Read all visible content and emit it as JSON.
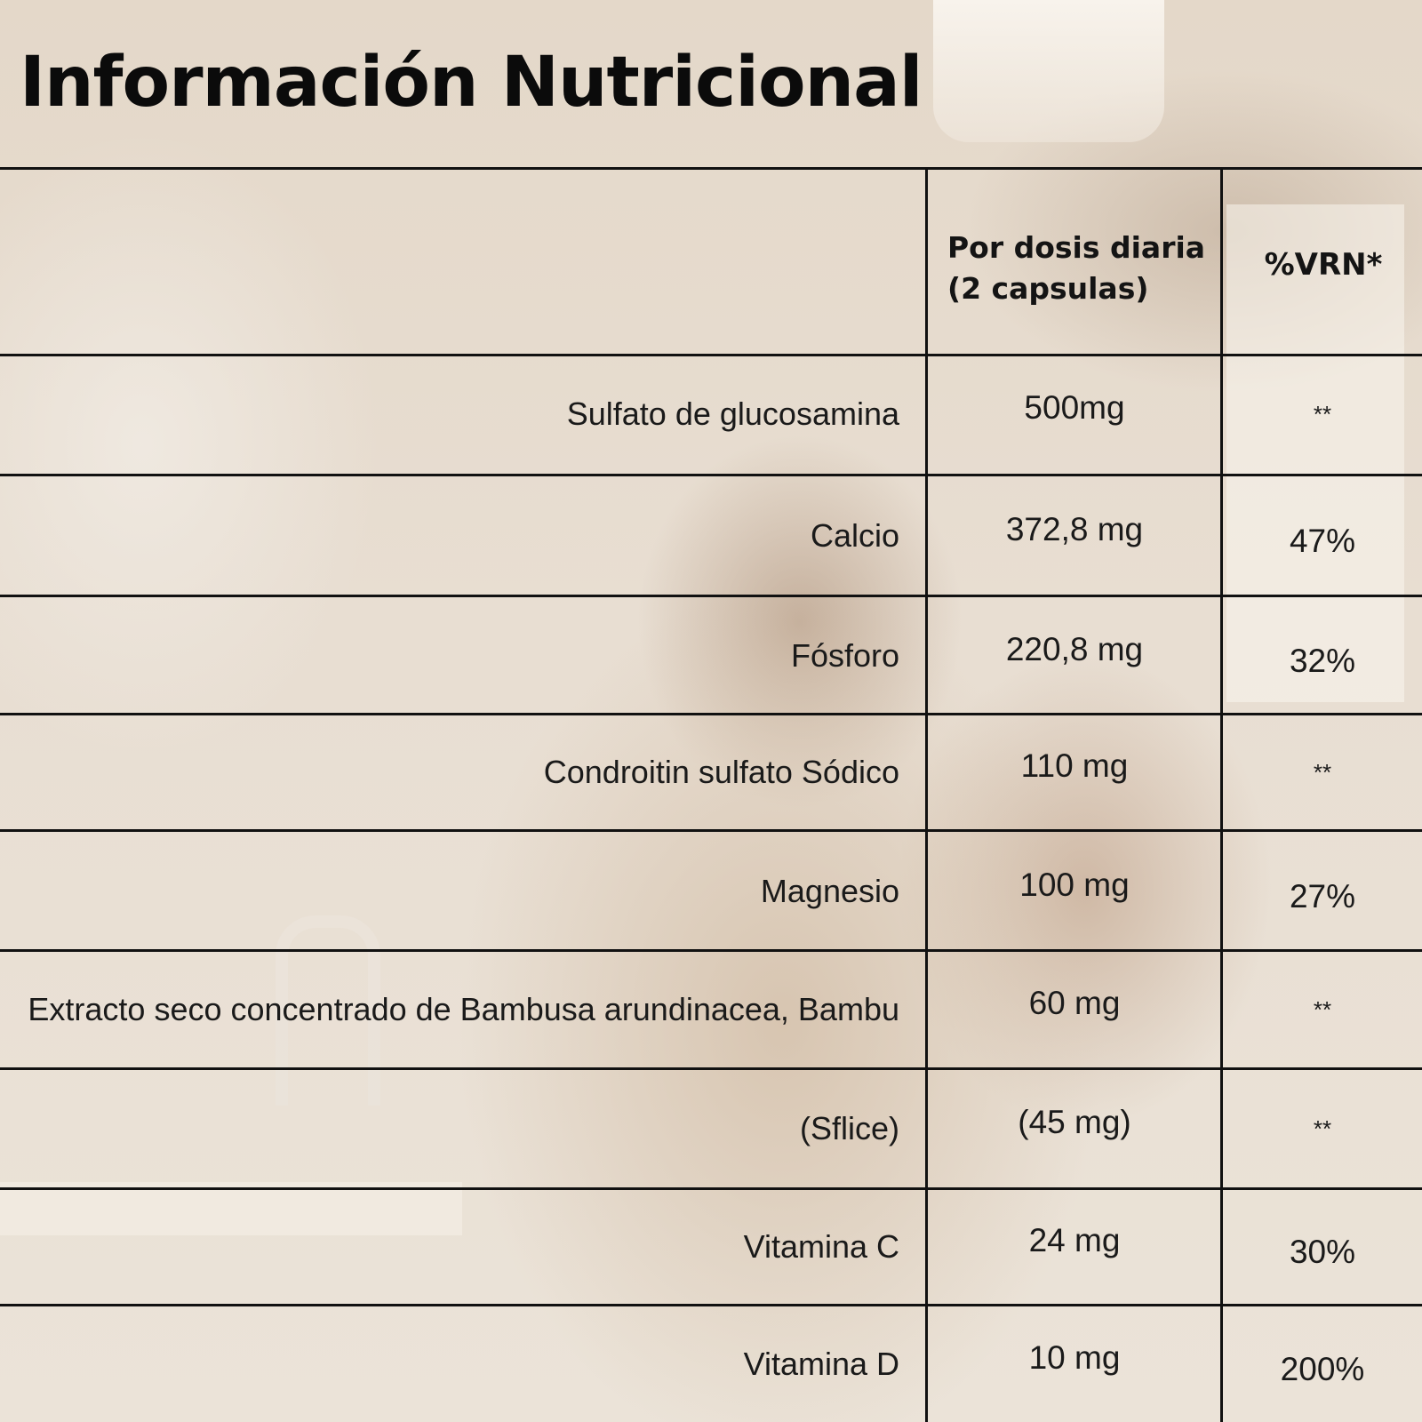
{
  "title": "Información Nutricional",
  "table": {
    "headers": {
      "nutrient": "",
      "dose": "Por dosis diaria (2 capsulas)",
      "vrn": "%VRN*"
    },
    "rows": [
      {
        "name": "Sulfato de glucosamina",
        "dose": "500mg",
        "vrn": "**"
      },
      {
        "name": "Calcio",
        "dose": "372,8 mg",
        "vrn": "47%"
      },
      {
        "name": "Fósforo",
        "dose": "220,8 mg",
        "vrn": "32%"
      },
      {
        "name": "Condroitin sulfato Sódico",
        "dose": "110 mg",
        "vrn": "**"
      },
      {
        "name": "Magnesio",
        "dose": "100 mg",
        "vrn": "27%"
      },
      {
        "name": "Extracto seco concentrado de Bambusa arundinacea, Bambu",
        "dose": "60 mg",
        "vrn": "**"
      },
      {
        "name": "(Sflice)",
        "dose": "(45 mg)",
        "vrn": "**"
      },
      {
        "name": "Vitamina C",
        "dose": "24 mg",
        "vrn": "30%"
      },
      {
        "name": "Vitamina D",
        "dose": "10 mg",
        "vrn": "200%"
      }
    ]
  }
}
